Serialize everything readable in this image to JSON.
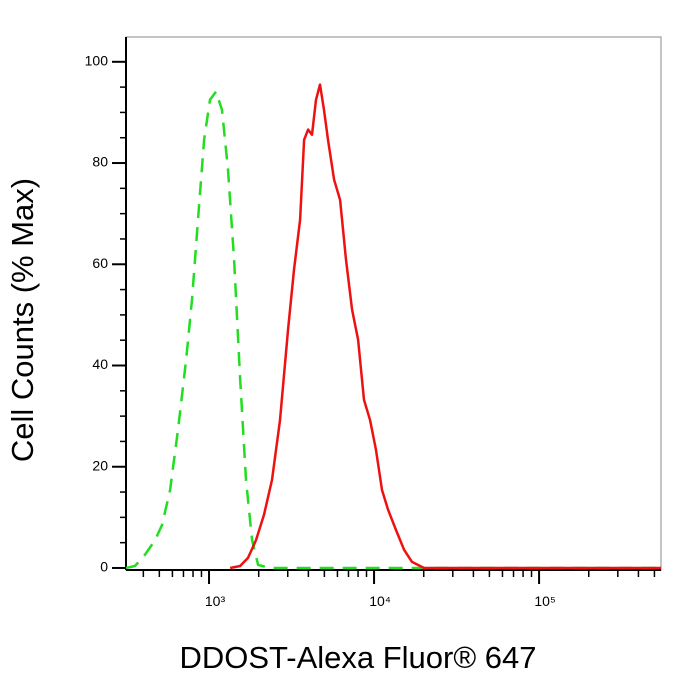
{
  "chart_data": {
    "type": "line",
    "x_label": "DDOST-Alexa Fluor® 647",
    "y_label": "Cell Counts (% Max)",
    "x_log": true,
    "xlim": [
      314,
      548000
    ],
    "ylim": [
      -0.4,
      104.9
    ],
    "xticks": [
      {
        "value": 1000,
        "label": "10³"
      },
      {
        "value": 10000,
        "label": "10⁴"
      },
      {
        "value": 100000,
        "label": "10⁵"
      }
    ],
    "yticks": [
      0,
      20,
      40,
      60,
      80,
      100
    ],
    "series": [
      {
        "color": "#22dd22",
        "dash": true,
        "x": [
          314,
          356,
          409,
          471,
          519,
          581,
          649,
          726,
          789,
          858,
          933,
          1014,
          1102,
          1199,
          1303,
          1418,
          1542,
          1675,
          1824,
          1982,
          2344,
          548000
        ],
        "values": [
          0,
          0.4,
          2.6,
          5.5,
          8.5,
          15.4,
          27.3,
          41.1,
          53,
          68.8,
          84.6,
          92.5,
          94.1,
          90.5,
          78.7,
          60.9,
          37.5,
          17.4,
          5.5,
          0.6,
          0,
          0
        ]
      },
      {
        "color": "#ee1111",
        "dash": false,
        "x": [
          1341,
          1542,
          1722,
          1927,
          2154,
          2408,
          2692,
          3010,
          3275,
          3565,
          3768,
          3985,
          4209,
          4447,
          4707,
          4977,
          5260,
          5728,
          6223,
          6761,
          7362,
          8000,
          8690,
          9462,
          10280,
          11170,
          12160,
          13590,
          15210,
          16990,
          20090,
          25120,
          548000
        ],
        "values": [
          0,
          0.4,
          2,
          5.5,
          10.5,
          17.4,
          29.2,
          47,
          58.9,
          68.8,
          84.6,
          86.6,
          85.6,
          92.5,
          95.5,
          90.5,
          84.6,
          76.7,
          72.7,
          60.9,
          51,
          45.1,
          33.2,
          29.2,
          23.3,
          15.4,
          11.5,
          7.5,
          3.6,
          1.2,
          0,
          0,
          0
        ]
      }
    ]
  }
}
